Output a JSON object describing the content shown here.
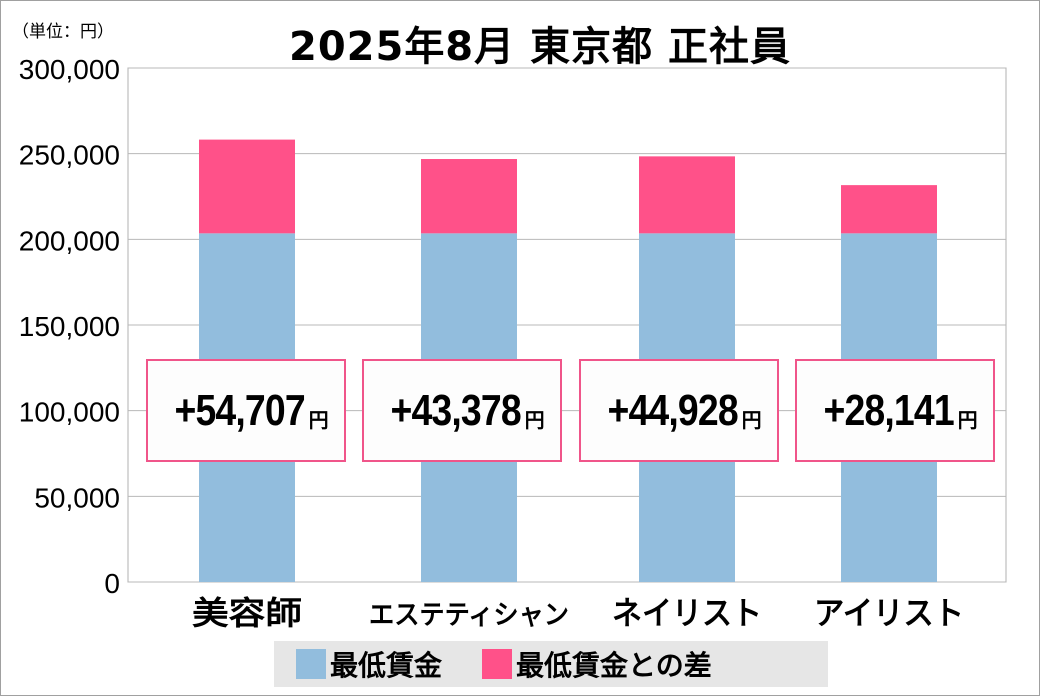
{
  "unit_label": "（単位：円）",
  "title": "2025年8月 東京都 正社員",
  "chart_data": {
    "type": "bar",
    "stacked": true,
    "title": "2025年8月 東京都 正社員",
    "unit": "（単位：円）",
    "categories": [
      "美容師",
      "エステティシャン",
      "ネイリスト",
      "アイリスト"
    ],
    "series": [
      {
        "name": "最低賃金",
        "color": "#92bddd",
        "values": [
          203500,
          203500,
          203500,
          203500
        ]
      },
      {
        "name": "最低賃金との差",
        "color": "#ff5189",
        "values": [
          54707,
          43378,
          44928,
          28141
        ]
      }
    ],
    "data_labels": [
      "+54,707",
      "+43,378",
      "+44,928",
      "+28,141"
    ],
    "data_label_unit": "円",
    "ylim": [
      0,
      300000
    ],
    "yticks": [
      "0",
      "50,000",
      "100,000",
      "150,000",
      "200,000",
      "250,000",
      "300,000"
    ],
    "grid": true,
    "legend": "bottom"
  }
}
